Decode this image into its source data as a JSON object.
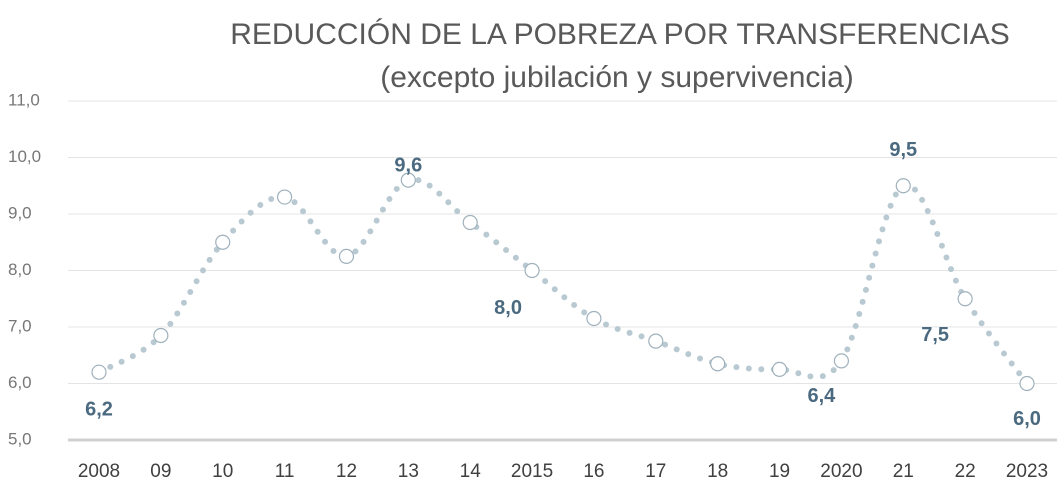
{
  "chart_data": {
    "type": "line",
    "title": "REDUCCIÓN DE LA POBREZA POR TRANSFERENCIAS",
    "subtitle": "(excepto jubilación y supervivencia)",
    "categories": [
      "2008",
      "09",
      "10",
      "11",
      "12",
      "13",
      "14",
      "2015",
      "16",
      "17",
      "18",
      "19",
      "2020",
      "21",
      "22",
      "2023"
    ],
    "values": [
      6.2,
      6.85,
      8.5,
      9.3,
      8.25,
      9.6,
      8.85,
      8.0,
      7.15,
      6.75,
      6.35,
      6.25,
      6.4,
      9.5,
      7.5,
      6.0
    ],
    "value_labels": [
      "6,2",
      null,
      null,
      null,
      null,
      "9,6",
      null,
      "8,0",
      null,
      null,
      null,
      null,
      "6,4",
      "9,5",
      "7,5",
      "6,0"
    ],
    "color": "#b9c9d2",
    "ylim": [
      5,
      11
    ],
    "yticks": [
      {
        "value": 5,
        "label": "5,0"
      },
      {
        "value": 6,
        "label": "6,0"
      },
      {
        "value": 7,
        "label": "7,0"
      },
      {
        "value": 8,
        "label": "8,0"
      },
      {
        "value": 9,
        "label": "9,0"
      },
      {
        "value": 10,
        "label": "10,0"
      },
      {
        "value": 11,
        "label": "11,0"
      }
    ],
    "grid": true
  }
}
